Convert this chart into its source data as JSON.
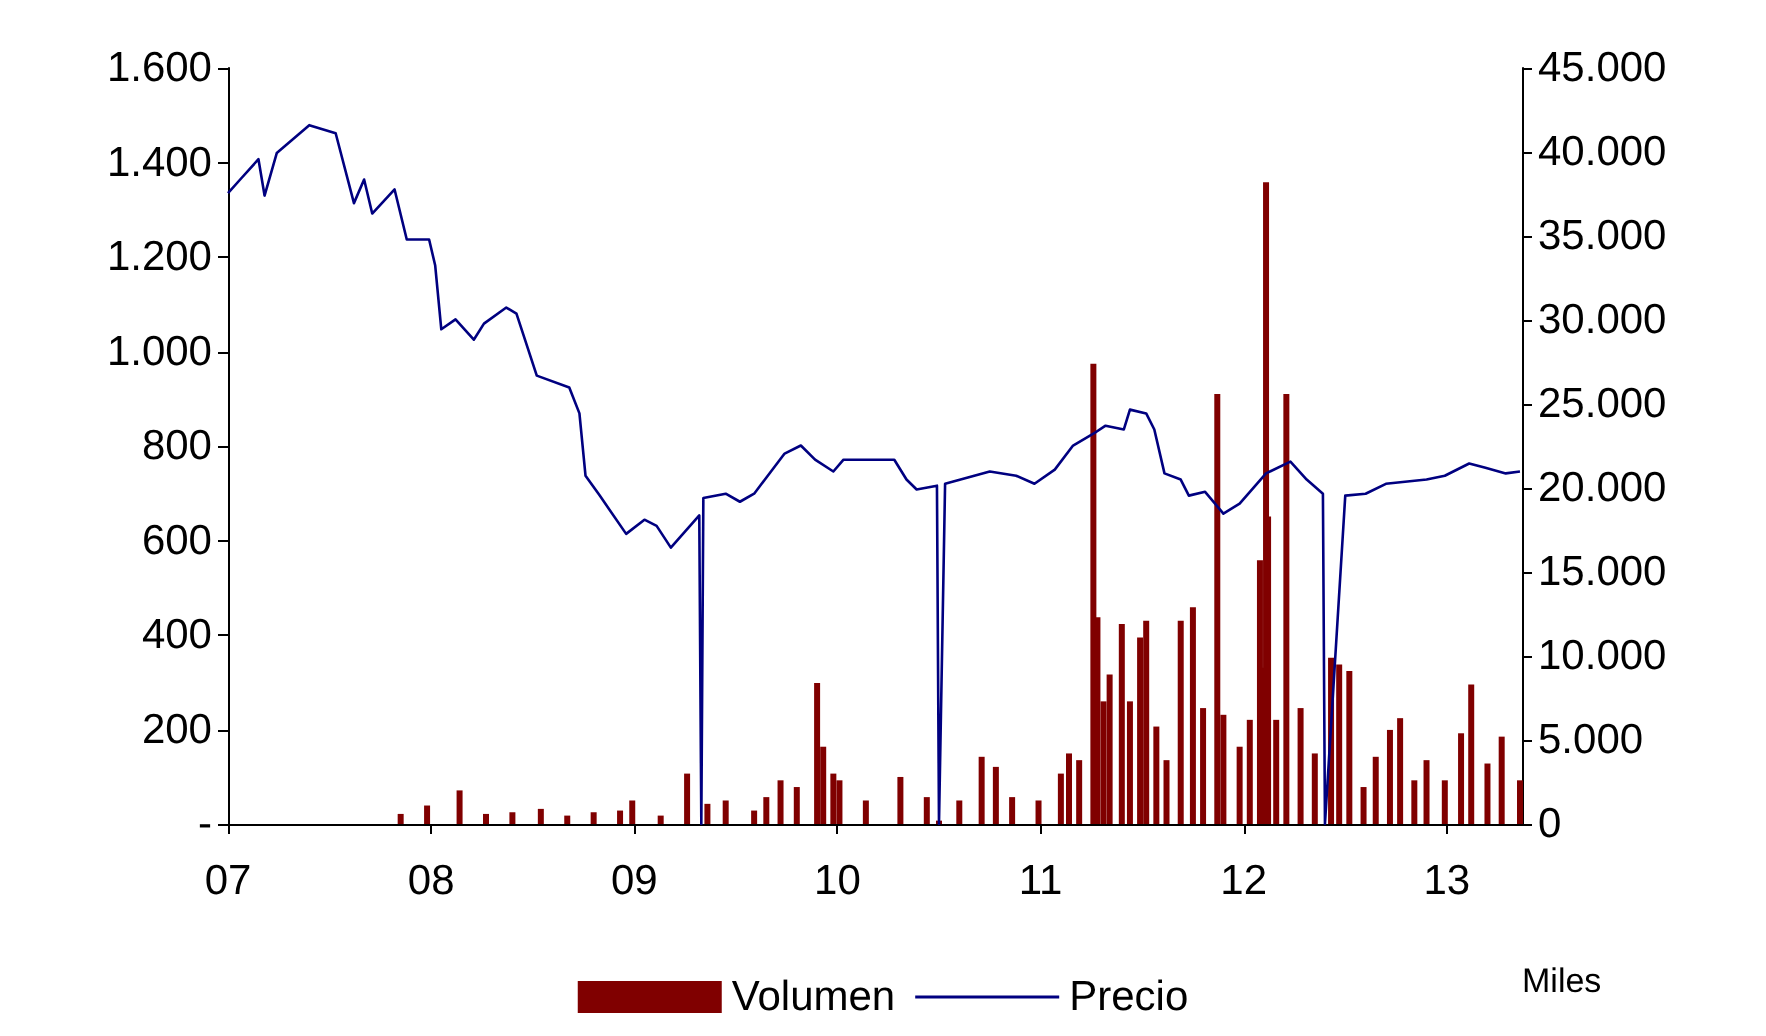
{
  "chart_data": {
    "type": "line",
    "y2label": "Miles",
    "legend": "bottom",
    "grid": false,
    "marker": "none",
    "line_style": "solid",
    "xlim": [
      2007,
      2013.37
    ],
    "xticks": [
      {
        "value": 2007,
        "label": "07"
      },
      {
        "value": 2008,
        "label": "08"
      },
      {
        "value": 2009,
        "label": "09"
      },
      {
        "value": 2010,
        "label": "10"
      },
      {
        "value": 2011,
        "label": "11"
      },
      {
        "value": 2012,
        "label": "12"
      },
      {
        "value": 2013,
        "label": "13"
      }
    ],
    "ylim": [
      0,
      1600
    ],
    "yticks": [
      {
        "value": 0,
        "label": "-"
      },
      200,
      400,
      600,
      800,
      {
        "value": 1000,
        "label": "1.000"
      },
      {
        "value": 1200,
        "label": "1.200"
      },
      {
        "value": 1400,
        "label": "1.400"
      },
      {
        "value": 1600,
        "label": "1.600"
      }
    ],
    "y2lim": [
      0,
      45000
    ],
    "y2ticks": [
      0,
      {
        "value": 5000,
        "label": "5.000"
      },
      {
        "value": 10000,
        "label": "10.000"
      },
      {
        "value": 15000,
        "label": "15.000"
      },
      {
        "value": 20000,
        "label": "20.000"
      },
      {
        "value": 25000,
        "label": "25.000"
      },
      {
        "value": 30000,
        "label": "30.000"
      },
      {
        "value": 35000,
        "label": "35.000"
      },
      {
        "value": 40000,
        "label": "40.000"
      },
      {
        "value": 45000,
        "label": "45.000"
      }
    ],
    "series": [
      {
        "name": "Volumen",
        "type": "bar",
        "axis": "y2",
        "color": "#800000",
        "x": [
          2007.85,
          2007.98,
          2008.14,
          2008.27,
          2008.4,
          2008.54,
          2008.67,
          2008.8,
          2008.93,
          2008.99,
          2009.13,
          2009.26,
          2009.36,
          2009.45,
          2009.59,
          2009.65,
          2009.72,
          2009.8,
          2009.9,
          2009.93,
          2009.98,
          2010.01,
          2010.14,
          2010.31,
          2010.44,
          2010.5,
          2010.6,
          2010.71,
          2010.78,
          2010.86,
          2010.99,
          2011.1,
          2011.14,
          2011.19,
          2011.26,
          2011.28,
          2011.31,
          2011.34,
          2011.4,
          2011.44,
          2011.49,
          2011.52,
          2011.57,
          2011.62,
          2011.69,
          2011.75,
          2011.8,
          2011.87,
          2011.9,
          2011.98,
          2012.03,
          2012.08,
          2012.09,
          2012.11,
          2012.12,
          2012.16,
          2012.21,
          2012.28,
          2012.35,
          2012.4,
          2012.43,
          2012.47,
          2012.52,
          2012.59,
          2012.65,
          2012.72,
          2012.77,
          2012.84,
          2012.9,
          2012.99,
          2013.07,
          2013.12,
          2013.2,
          2013.27,
          2013.36
        ],
        "values": [
          600,
          1100,
          2000,
          600,
          700,
          900,
          500,
          700,
          800,
          1400,
          500,
          3000,
          1200,
          1400,
          800,
          1600,
          2600,
          2200,
          8400,
          4600,
          3000,
          2600,
          1400,
          2800,
          1600,
          200,
          1400,
          4000,
          3400,
          1600,
          1400,
          3000,
          4200,
          3800,
          27400,
          12300,
          7300,
          8900,
          11900,
          7300,
          11100,
          12100,
          5800,
          3800,
          12100,
          12900,
          6900,
          25600,
          6500,
          4600,
          6200,
          15700,
          9300,
          38200,
          18300,
          6200,
          25600,
          6900,
          4200,
          null,
          9900,
          9500,
          9100,
          2200,
          4000,
          5600,
          6300,
          2600,
          3800,
          2600,
          5400,
          8300,
          3600,
          5200,
          2600
        ]
      },
      {
        "name": "Precio",
        "color": "#000080",
        "x": [
          2007,
          2007.06,
          2007.15,
          2007.18,
          2007.24,
          2007.4,
          2007.53,
          2007.62,
          2007.67,
          2007.71,
          2007.82,
          2007.88,
          2007.99,
          2008.02,
          2008.05,
          2008.12,
          2008.21,
          2008.26,
          2008.37,
          2008.42,
          2008.52,
          2008.68,
          2008.73,
          2008.76,
          2008.83,
          2008.96,
          2009.05,
          2009.11,
          2009.18,
          2009.32,
          2009.33,
          2009.34,
          2009.45,
          2009.52,
          2009.59,
          2009.74,
          2009.82,
          2009.89,
          2009.98,
          2010.03,
          2010.11,
          2010.28,
          2010.34,
          2010.39,
          2010.49,
          2010.5,
          2010.53,
          2010.75,
          2010.88,
          2010.97,
          2011.07,
          2011.16,
          2011.26,
          2011.32,
          2011.41,
          2011.44,
          2011.52,
          2011.56,
          2011.61,
          2011.69,
          2011.73,
          2011.81,
          2011.9,
          2011.98,
          2012.11,
          2012.23,
          2012.31,
          2012.39,
          2012.4,
          2012.5,
          2012.6,
          2012.7,
          2012.9,
          2012.99,
          2013.11,
          2013.19,
          2013.29,
          2013.36
        ],
        "values": [
          1335,
          1364,
          1407,
          1330,
          1420,
          1479,
          1462,
          1314,
          1364,
          1292,
          1343,
          1237,
          1237,
          1182,
          1047,
          1068,
          1025,
          1059,
          1093,
          1080,
          949,
          924,
          869,
          737,
          695,
          614,
          644,
          631,
          585,
          653,
          0,
          690,
          699,
          682,
          699,
          784,
          801,
          771,
          746,
          771,
          771,
          771,
          729,
          708,
          716,
          0,
          720,
          746,
          737,
          720,
          750,
          801,
          826,
          843,
          835,
          877,
          869,
          835,
          742,
          729,
          695,
          703,
          657,
          678,
          742,
          767,
          729,
          699,
          0,
          695,
          699,
          720,
          729,
          737,
          763,
          754,
          742,
          746
        ]
      }
    ]
  }
}
